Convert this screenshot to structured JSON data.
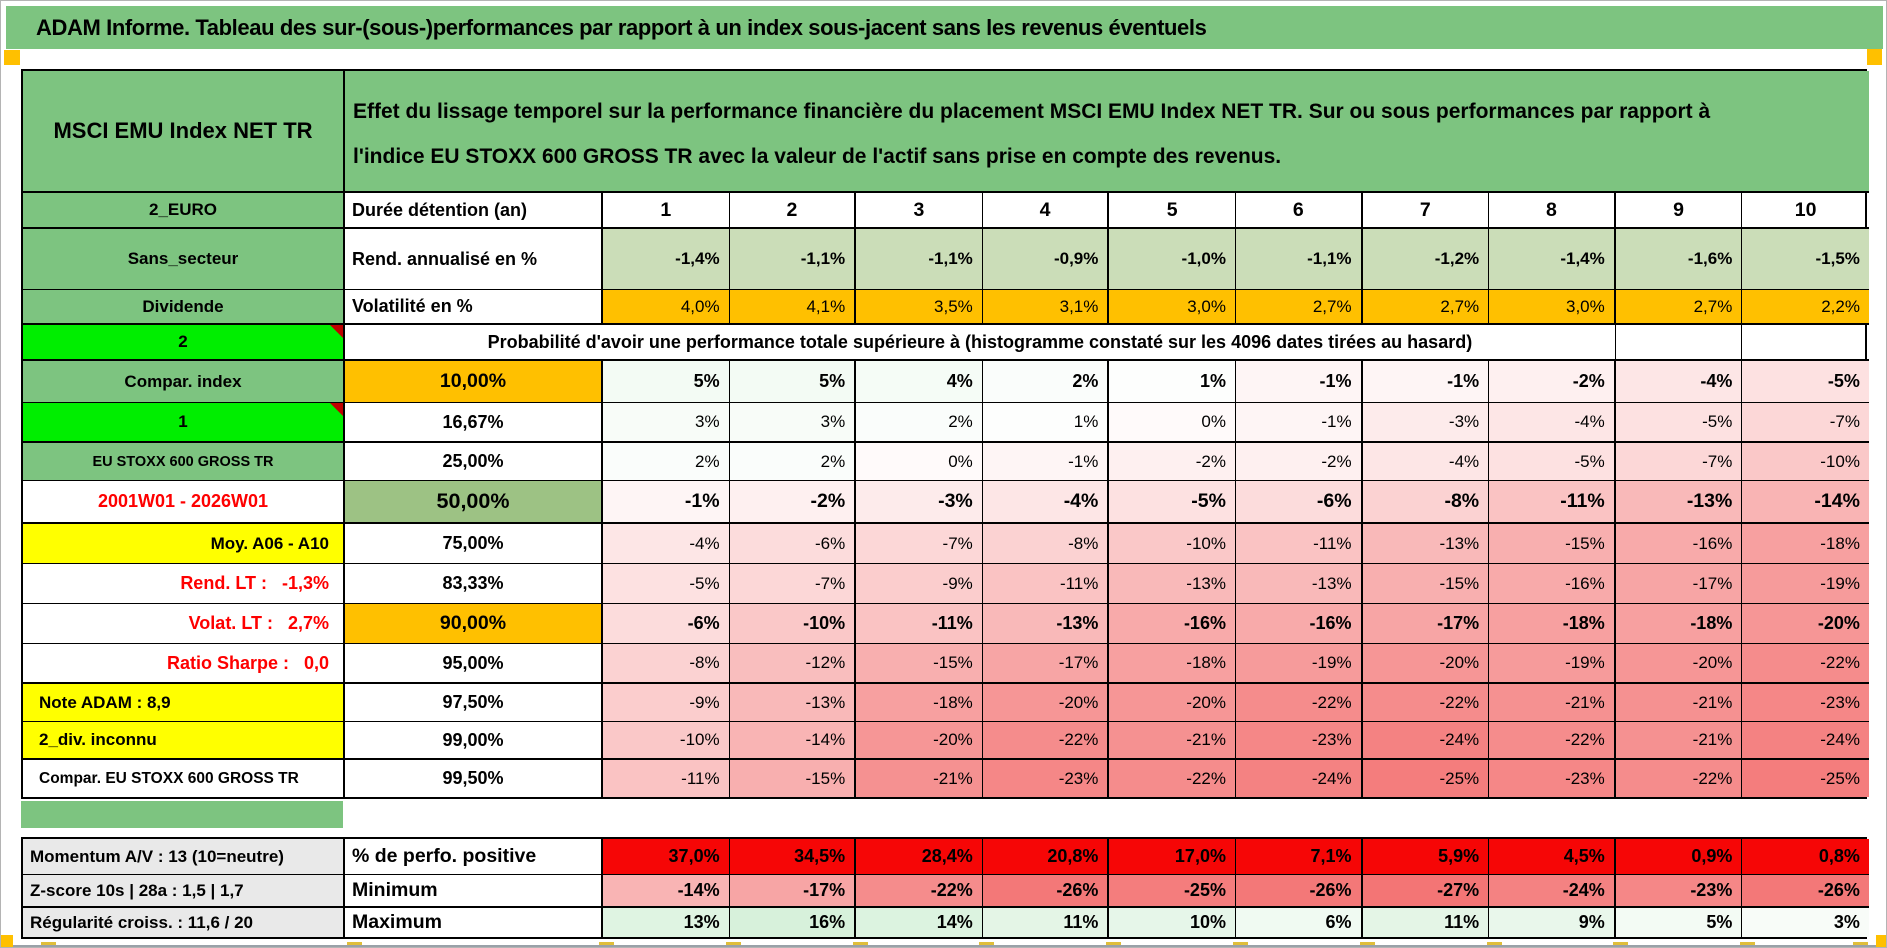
{
  "window": {
    "title_bar": "ADAM Informe. Tableau des sur-(sous-)performances par rapport à un index sous-jacent sans les revenus éventuels"
  },
  "colors": {
    "title_green": "#7DC480",
    "label_green": "#7DC480",
    "lime": "#00EE00",
    "orange": "#FFC000",
    "yellow": "#FFFF00",
    "sage": "#CBDDB8",
    "green_mid": "#9DC284",
    "red_text": "#FE0000",
    "red_fill": "#F60606",
    "gray_label": "#E9E9E9",
    "marker_orange": "#FFC000",
    "note_triangle": "#C00000"
  },
  "header": {
    "instrument": "MSCI EMU Index NET TR",
    "description": "Effet du lissage temporel sur la performance financière du placement MSCI EMU Index NET TR. Sur ou sous performances par rapport à l'indice EU STOXX 600 GROSS TR avec la valeur de l'actif sans prise en compte des revenus."
  },
  "table": {
    "duree": {
      "a": "2_EURO",
      "b": "Durée détention (an)",
      "values": [
        "1",
        "2",
        "3",
        "4",
        "5",
        "6",
        "7",
        "8",
        "9",
        "10"
      ]
    },
    "rend": {
      "a": "Sans_secteur",
      "b": "Rend. annualisé en %",
      "values": [
        "-1,4%",
        "-1,1%",
        "-1,1%",
        "-0,9%",
        "-1,0%",
        "-1,1%",
        "-1,2%",
        "-1,4%",
        "-1,6%",
        "-1,5%"
      ]
    },
    "vol": {
      "a": "Dividende",
      "b": "Volatilité en %",
      "values": [
        "4,0%",
        "4,1%",
        "3,5%",
        "3,1%",
        "3,0%",
        "2,7%",
        "2,7%",
        "3,0%",
        "2,7%",
        "2,2%"
      ]
    },
    "prob": {
      "a": "2",
      "text": "Probabilité d'avoir une performance totale supérieure à (histogramme constaté sur les 4096 dates tirées au hasard)"
    },
    "quantiles": [
      {
        "label": "Compar. index",
        "label_bg": "green",
        "label_color": "black",
        "label_align": "center",
        "marker": false,
        "q": "10,00%",
        "q_bg": "orange",
        "values": [
          "5%",
          "5%",
          "4%",
          "2%",
          "1%",
          "-1%",
          "-1%",
          "-2%",
          "-4%",
          "-5%"
        ]
      },
      {
        "label": "1",
        "label_bg": "lime",
        "label_color": "black",
        "label_align": "center",
        "marker": true,
        "q": "16,67%",
        "q_bg": "white",
        "values": [
          "3%",
          "3%",
          "2%",
          "1%",
          "0%",
          "-1%",
          "-3%",
          "-4%",
          "-5%",
          "-7%"
        ]
      },
      {
        "label": "EU STOXX 600 GROSS TR",
        "label_bg": "green",
        "label_color": "black",
        "label_align": "center",
        "marker": false,
        "q": "25,00%",
        "q_bg": "white",
        "values": [
          "2%",
          "2%",
          "0%",
          "-1%",
          "-2%",
          "-2%",
          "-4%",
          "-5%",
          "-7%",
          "-10%"
        ]
      },
      {
        "label": "2001W01 - 2026W01",
        "label_bg": "white",
        "label_color": "red",
        "label_align": "center",
        "marker": false,
        "q": "50,00%",
        "q_bg": "green_mid",
        "values": [
          "-1%",
          "-2%",
          "-3%",
          "-4%",
          "-5%",
          "-6%",
          "-8%",
          "-11%",
          "-13%",
          "-14%"
        ]
      },
      {
        "label": "Moy. A06 - A10",
        "label_bg": "yellow",
        "label_color": "black",
        "label_align": "right",
        "marker": false,
        "q": "75,00%",
        "q_bg": "white",
        "values": [
          "-4%",
          "-6%",
          "-7%",
          "-8%",
          "-10%",
          "-11%",
          "-13%",
          "-15%",
          "-16%",
          "-18%"
        ]
      },
      {
        "label": "Rend. LT :   -1,3%",
        "label_bg": "white",
        "label_color": "red",
        "label_align": "right",
        "marker": false,
        "q": "83,33%",
        "q_bg": "white",
        "values": [
          "-5%",
          "-7%",
          "-9%",
          "-11%",
          "-13%",
          "-13%",
          "-15%",
          "-16%",
          "-17%",
          "-19%"
        ]
      },
      {
        "label": "Volat. LT :   2,7%",
        "label_bg": "white",
        "label_color": "red",
        "label_align": "right",
        "marker": false,
        "q": "90,00%",
        "q_bg": "orange",
        "values": [
          "-6%",
          "-10%",
          "-11%",
          "-13%",
          "-16%",
          "-16%",
          "-17%",
          "-18%",
          "-18%",
          "-20%"
        ]
      },
      {
        "label": "Ratio Sharpe :   0,0",
        "label_bg": "white",
        "label_color": "red",
        "label_align": "right",
        "marker": false,
        "q": "95,00%",
        "q_bg": "white",
        "values": [
          "-8%",
          "-12%",
          "-15%",
          "-17%",
          "-18%",
          "-19%",
          "-20%",
          "-19%",
          "-20%",
          "-22%"
        ]
      },
      {
        "label": "Note ADAM : 8,9",
        "label_bg": "yellow",
        "label_color": "black",
        "label_align": "left",
        "marker": false,
        "q": "97,50%",
        "q_bg": "white",
        "values": [
          "-9%",
          "-13%",
          "-18%",
          "-20%",
          "-20%",
          "-22%",
          "-22%",
          "-21%",
          "-21%",
          "-23%"
        ]
      },
      {
        "label": "2_div. inconnu",
        "label_bg": "yellow",
        "label_color": "black",
        "label_align": "left",
        "marker": false,
        "q": "99,00%",
        "q_bg": "white",
        "values": [
          "-10%",
          "-14%",
          "-20%",
          "-22%",
          "-21%",
          "-23%",
          "-24%",
          "-22%",
          "-21%",
          "-24%"
        ]
      },
      {
        "label": "Compar. EU STOXX 600 GROSS TR",
        "label_bg": "white",
        "label_color": "black",
        "label_align": "left",
        "marker": false,
        "q": "99,50%",
        "q_bg": "white",
        "values": [
          "-11%",
          "-15%",
          "-21%",
          "-23%",
          "-22%",
          "-24%",
          "-25%",
          "-23%",
          "-22%",
          "-25%"
        ]
      }
    ]
  },
  "bottom": {
    "rows": [
      {
        "label": "Momentum A/V : 13 (10=neutre)",
        "metric": "% de perfo. positive",
        "style": "red",
        "values": [
          "37,0%",
          "34,5%",
          "28,4%",
          "20,8%",
          "17,0%",
          "7,1%",
          "5,9%",
          "4,5%",
          "0,9%",
          "0,8%"
        ]
      },
      {
        "label": "Z-score 10s | 28a : 1,5 | 1,7",
        "metric": "Minimum",
        "style": "cond",
        "values": [
          "-14%",
          "-17%",
          "-22%",
          "-26%",
          "-25%",
          "-26%",
          "-27%",
          "-24%",
          "-23%",
          "-26%"
        ]
      },
      {
        "label": "Régularité croiss. : 11,6 / 20",
        "metric": "Maximum",
        "style": "cond",
        "values": [
          "13%",
          "16%",
          "14%",
          "11%",
          "10%",
          "6%",
          "11%",
          "9%",
          "5%",
          "3%"
        ]
      }
    ]
  }
}
